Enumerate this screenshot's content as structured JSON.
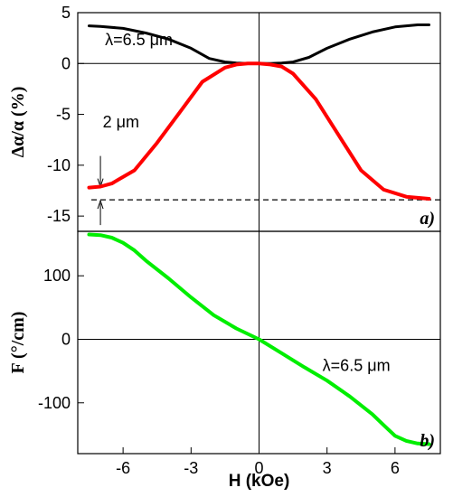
{
  "chart_data": [
    {
      "id": "panel-a",
      "type": "line",
      "panel_label": "a)",
      "ylabel": "Δα/α (%)",
      "xlim": [
        -8,
        8
      ],
      "ylim": [
        -16.5,
        5
      ],
      "yticks": [
        5,
        0,
        -5,
        -10,
        -15
      ],
      "ytick_labels": [
        "5",
        "0",
        "-5",
        "-10",
        "-15"
      ],
      "grid": false,
      "zero_lines": true,
      "series": [
        {
          "color": "#000000",
          "x": [
            -7.5,
            -7,
            -6,
            -5,
            -4,
            -3,
            -2.2,
            -1.5,
            -1,
            -0.5,
            0,
            0.5,
            1,
            1.5,
            2.2,
            3,
            4,
            5,
            6,
            7,
            7.5
          ],
          "y": [
            3.7,
            3.65,
            3.45,
            3.0,
            2.4,
            1.5,
            0.5,
            0.15,
            0.05,
            0.0,
            0.0,
            0.0,
            0.05,
            0.15,
            0.6,
            1.5,
            2.4,
            3.1,
            3.6,
            3.8,
            3.8
          ]
        },
        {
          "color": "#ff0000",
          "x": [
            -7.5,
            -7,
            -6.5,
            -5.5,
            -4.5,
            -3.5,
            -2.5,
            -1.5,
            -1,
            -0.5,
            0,
            0.5,
            1,
            1.5,
            2.5,
            3.5,
            4.5,
            5.5,
            6.5,
            7.5
          ],
          "y": [
            -12.2,
            -12.1,
            -11.8,
            -10.5,
            -7.8,
            -4.8,
            -1.8,
            -0.4,
            -0.1,
            0.0,
            0.0,
            -0.1,
            -0.3,
            -1.0,
            -3.5,
            -7.0,
            -10.5,
            -12.4,
            -13.1,
            -13.3
          ]
        }
      ],
      "annotations": [
        {
          "text": "λ=6.5 μm",
          "x": -6.8,
          "y": 1.8
        },
        {
          "text": "2 μm",
          "x": -6.9,
          "y": -6.3
        }
      ],
      "dashed_line_y": -13.4,
      "arrow_top_y": -12.2,
      "arrow_bottom_y": -13.4,
      "arrow_x": -7.0
    },
    {
      "id": "panel-b",
      "type": "line",
      "panel_label": "b)",
      "xlabel": "H (kOe)",
      "ylabel": "F (°/cm)",
      "xlim": [
        -8,
        8
      ],
      "ylim": [
        -180,
        170
      ],
      "xticks": [
        -6,
        -3,
        0,
        3,
        6
      ],
      "xtick_labels": [
        "-6",
        "-3",
        "0",
        "3",
        "6"
      ],
      "yticks": [
        100,
        0,
        -100
      ],
      "ytick_labels": [
        "100",
        "0",
        "-100"
      ],
      "grid": false,
      "zero_lines": true,
      "series": [
        {
          "color": "#00ee00",
          "x": [
            -7.5,
            -7,
            -6.5,
            -6,
            -5.5,
            -5,
            -4,
            -3,
            -2,
            -1,
            0,
            1,
            2,
            3,
            4,
            5,
            5.5,
            6,
            6.5,
            7,
            7.5
          ],
          "y": [
            165,
            164,
            160,
            152,
            140,
            124,
            96,
            66,
            38,
            17,
            0,
            -22,
            -44,
            -65,
            -90,
            -118,
            -135,
            -152,
            -160,
            -164,
            -165
          ]
        }
      ],
      "annotations": [
        {
          "text": "λ=6.5 μm",
          "x": 2.8,
          "y": -50
        }
      ]
    }
  ]
}
